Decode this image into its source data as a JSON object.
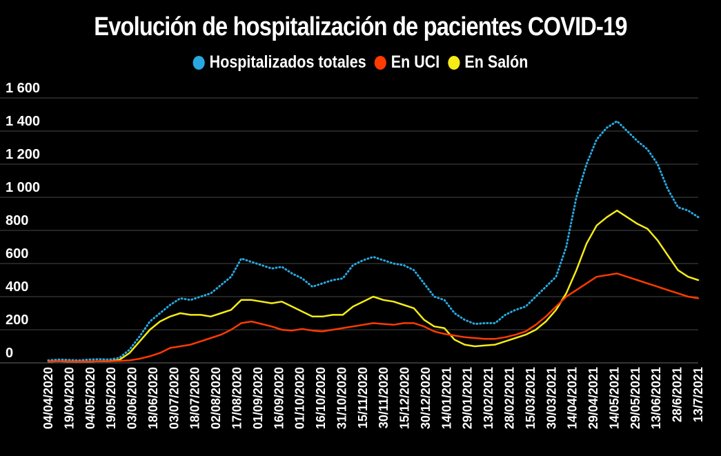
{
  "chart_data": {
    "type": "line",
    "title": "Evolución de hospitalización de pacientes COVID-19",
    "xlabel": "",
    "ylabel": "",
    "ylim": [
      0,
      1600
    ],
    "y_ticks": [
      0,
      200,
      400,
      600,
      800,
      1000,
      1200,
      1400,
      1600
    ],
    "y_tick_labels": [
      "0",
      "200",
      "400",
      "600",
      "800",
      "1 000",
      "1 200",
      "1 400",
      "1 600"
    ],
    "grid": "horizontal",
    "legend_position": "top-center",
    "x_tick_labels": [
      "04/04/2020",
      "19/04/2020",
      "04/05/2020",
      "19/05/2020",
      "03/06/2020",
      "18/06/2020",
      "03/07/2020",
      "18/07/2020",
      "02/08/2020",
      "17/08/2020",
      "01/09/2020",
      "16/09/2020",
      "01/10/2020",
      "16/10/2020",
      "31/10/2020",
      "15/11/2020",
      "30/11/2020",
      "15/12/2020",
      "30/12/2020",
      "14/01/2021",
      "29/01/2021",
      "13/02/2021",
      "28/02/2021",
      "15/03/2021",
      "30/03/2021",
      "14/04/2021",
      "29/04/2021",
      "14/05/2021",
      "29/05/2021",
      "13/06/2021",
      "28/6/2021",
      "13/7/2021"
    ],
    "series": [
      {
        "name": "Hospitalizados totales",
        "color": "#29a8e0",
        "style": "dotted",
        "values": [
          15,
          20,
          18,
          15,
          20,
          22,
          20,
          30,
          80,
          160,
          250,
          300,
          350,
          390,
          380,
          400,
          420,
          470,
          520,
          630,
          610,
          590,
          570,
          580,
          540,
          510,
          460,
          480,
          500,
          510,
          590,
          620,
          640,
          620,
          600,
          590,
          560,
          480,
          400,
          380,
          300,
          260,
          235,
          240,
          240,
          290,
          320,
          340,
          400,
          460,
          520,
          700,
          1000,
          1200,
          1350,
          1420,
          1460,
          1400,
          1340,
          1290,
          1200,
          1050,
          940,
          920,
          880
        ]
      },
      {
        "name": "En UCI",
        "color": "#ff3b00",
        "style": "solid",
        "values": [
          8,
          10,
          8,
          8,
          8,
          10,
          10,
          12,
          15,
          25,
          40,
          60,
          90,
          100,
          110,
          130,
          150,
          170,
          200,
          240,
          250,
          235,
          220,
          200,
          195,
          205,
          195,
          190,
          200,
          210,
          220,
          230,
          240,
          235,
          230,
          240,
          240,
          220,
          190,
          175,
          165,
          155,
          150,
          145,
          145,
          155,
          170,
          190,
          230,
          280,
          340,
          400,
          440,
          480,
          520,
          530,
          540,
          520,
          500,
          480,
          460,
          440,
          420,
          400,
          390
        ]
      },
      {
        "name": "En Salón",
        "color": "#f5ec17",
        "style": "solid",
        "values": [
          8,
          10,
          8,
          8,
          8,
          10,
          10,
          18,
          60,
          130,
          200,
          250,
          280,
          300,
          290,
          290,
          280,
          300,
          320,
          380,
          380,
          370,
          360,
          370,
          340,
          310,
          280,
          280,
          290,
          290,
          340,
          370,
          400,
          380,
          370,
          350,
          330,
          260,
          220,
          210,
          140,
          110,
          100,
          105,
          110,
          130,
          150,
          170,
          200,
          250,
          320,
          420,
          560,
          720,
          830,
          880,
          920,
          880,
          840,
          810,
          740,
          650,
          560,
          520,
          500
        ]
      }
    ]
  }
}
